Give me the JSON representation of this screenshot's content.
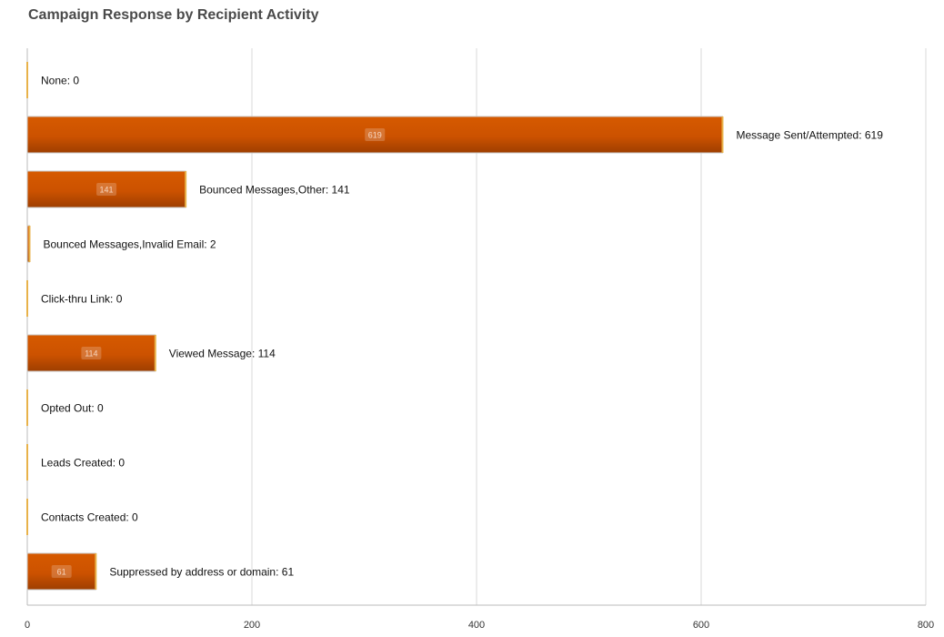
{
  "chart_data": {
    "type": "bar",
    "orientation": "horizontal",
    "title": "Campaign Response by Recipient Activity",
    "xlabel": "",
    "ylabel": "",
    "xlim": [
      0,
      800
    ],
    "x_ticks": [
      0,
      200,
      400,
      600,
      800
    ],
    "grid": true,
    "legend": "none",
    "categories": [
      "None",
      "Message Sent/Attempted",
      "Bounced Messages,Other",
      "Bounced Messages,Invalid Email",
      "Click-thru Link",
      "Viewed Message",
      "Opted Out",
      "Leads Created",
      "Contacts Created",
      "Suppressed by address or domain"
    ],
    "values": [
      0,
      619,
      141,
      2,
      0,
      114,
      0,
      0,
      0,
      61
    ],
    "colors": {
      "bar": "#cc5200",
      "bar_dark": "#a84300",
      "bar_edge": "#e8b24a",
      "grid": "#d9d9d9",
      "axis": "#bbbbbb"
    }
  }
}
